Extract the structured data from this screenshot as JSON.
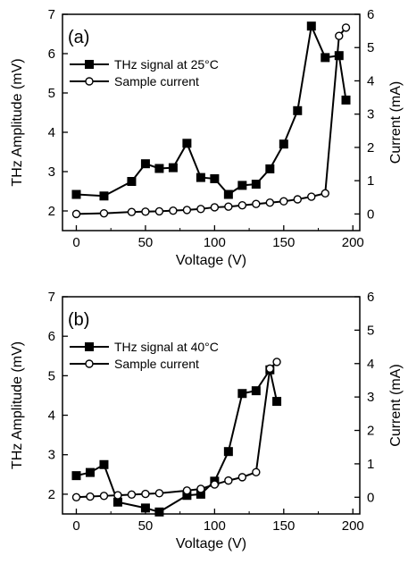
{
  "chart_data": [
    {
      "type": "line",
      "panel_label": "(a)",
      "xlabel": "Voltage (V)",
      "ylabel_left": "THz Amplitude (mV)",
      "ylabel_right": "Current (mA)",
      "xlim": [
        -10,
        205
      ],
      "ylim_left": [
        1.5,
        7
      ],
      "ylim_right": [
        -0.5,
        6
      ],
      "xticks": [
        0,
        50,
        100,
        150,
        200
      ],
      "yticks_left": [
        2,
        3,
        4,
        5,
        6,
        7
      ],
      "yticks_right": [
        0,
        1,
        2,
        3,
        4,
        5,
        6
      ],
      "legend_position": "top-left",
      "series": [
        {
          "name": "THz signal at 25°C",
          "axis": "left",
          "marker": "filled-square",
          "x": [
            0,
            20,
            40,
            50,
            60,
            70,
            80,
            90,
            100,
            110,
            120,
            130,
            140,
            150,
            160,
            170,
            180,
            190,
            195
          ],
          "y": [
            2.42,
            2.38,
            2.75,
            3.2,
            3.08,
            3.1,
            3.72,
            2.85,
            2.82,
            2.42,
            2.65,
            2.68,
            3.07,
            3.7,
            4.55,
            6.7,
            5.9,
            5.95,
            4.82
          ]
        },
        {
          "name": "Sample current",
          "axis": "right",
          "marker": "open-circle",
          "x": [
            0,
            20,
            40,
            50,
            60,
            70,
            80,
            90,
            100,
            110,
            120,
            130,
            140,
            150,
            160,
            170,
            180,
            190,
            195
          ],
          "y": [
            0.0,
            0.02,
            0.06,
            0.07,
            0.08,
            0.1,
            0.12,
            0.15,
            0.2,
            0.22,
            0.26,
            0.3,
            0.34,
            0.38,
            0.44,
            0.52,
            0.62,
            5.35,
            5.6
          ]
        }
      ]
    },
    {
      "type": "line",
      "panel_label": "(b)",
      "xlabel": "Voltage (V)",
      "ylabel_left": "THz Amplitude (mV)",
      "ylabel_right": "Current (mA)",
      "xlim": [
        -10,
        205
      ],
      "ylim_left": [
        1.5,
        7
      ],
      "ylim_right": [
        -0.5,
        6
      ],
      "xticks": [
        0,
        50,
        100,
        150,
        200
      ],
      "yticks_left": [
        2,
        3,
        4,
        5,
        6,
        7
      ],
      "yticks_right": [
        0,
        1,
        2,
        3,
        4,
        5,
        6
      ],
      "legend_position": "top-left",
      "series": [
        {
          "name": "THz signal at 40°C",
          "axis": "left",
          "marker": "filled-square",
          "x": [
            0,
            10,
            20,
            30,
            50,
            60,
            80,
            90,
            100,
            110,
            120,
            130,
            140,
            145
          ],
          "y": [
            2.47,
            2.55,
            2.75,
            1.8,
            1.65,
            1.55,
            1.97,
            2.0,
            2.33,
            3.08,
            4.55,
            4.62,
            5.15,
            4.35
          ]
        },
        {
          "name": "Sample current",
          "axis": "right",
          "marker": "open-circle",
          "x": [
            0,
            10,
            20,
            30,
            40,
            50,
            60,
            80,
            90,
            100,
            110,
            120,
            130,
            140,
            145
          ],
          "y": [
            0.0,
            0.02,
            0.04,
            0.06,
            0.08,
            0.1,
            0.12,
            0.2,
            0.25,
            0.38,
            0.5,
            0.6,
            0.75,
            3.85,
            4.05
          ]
        }
      ]
    }
  ]
}
